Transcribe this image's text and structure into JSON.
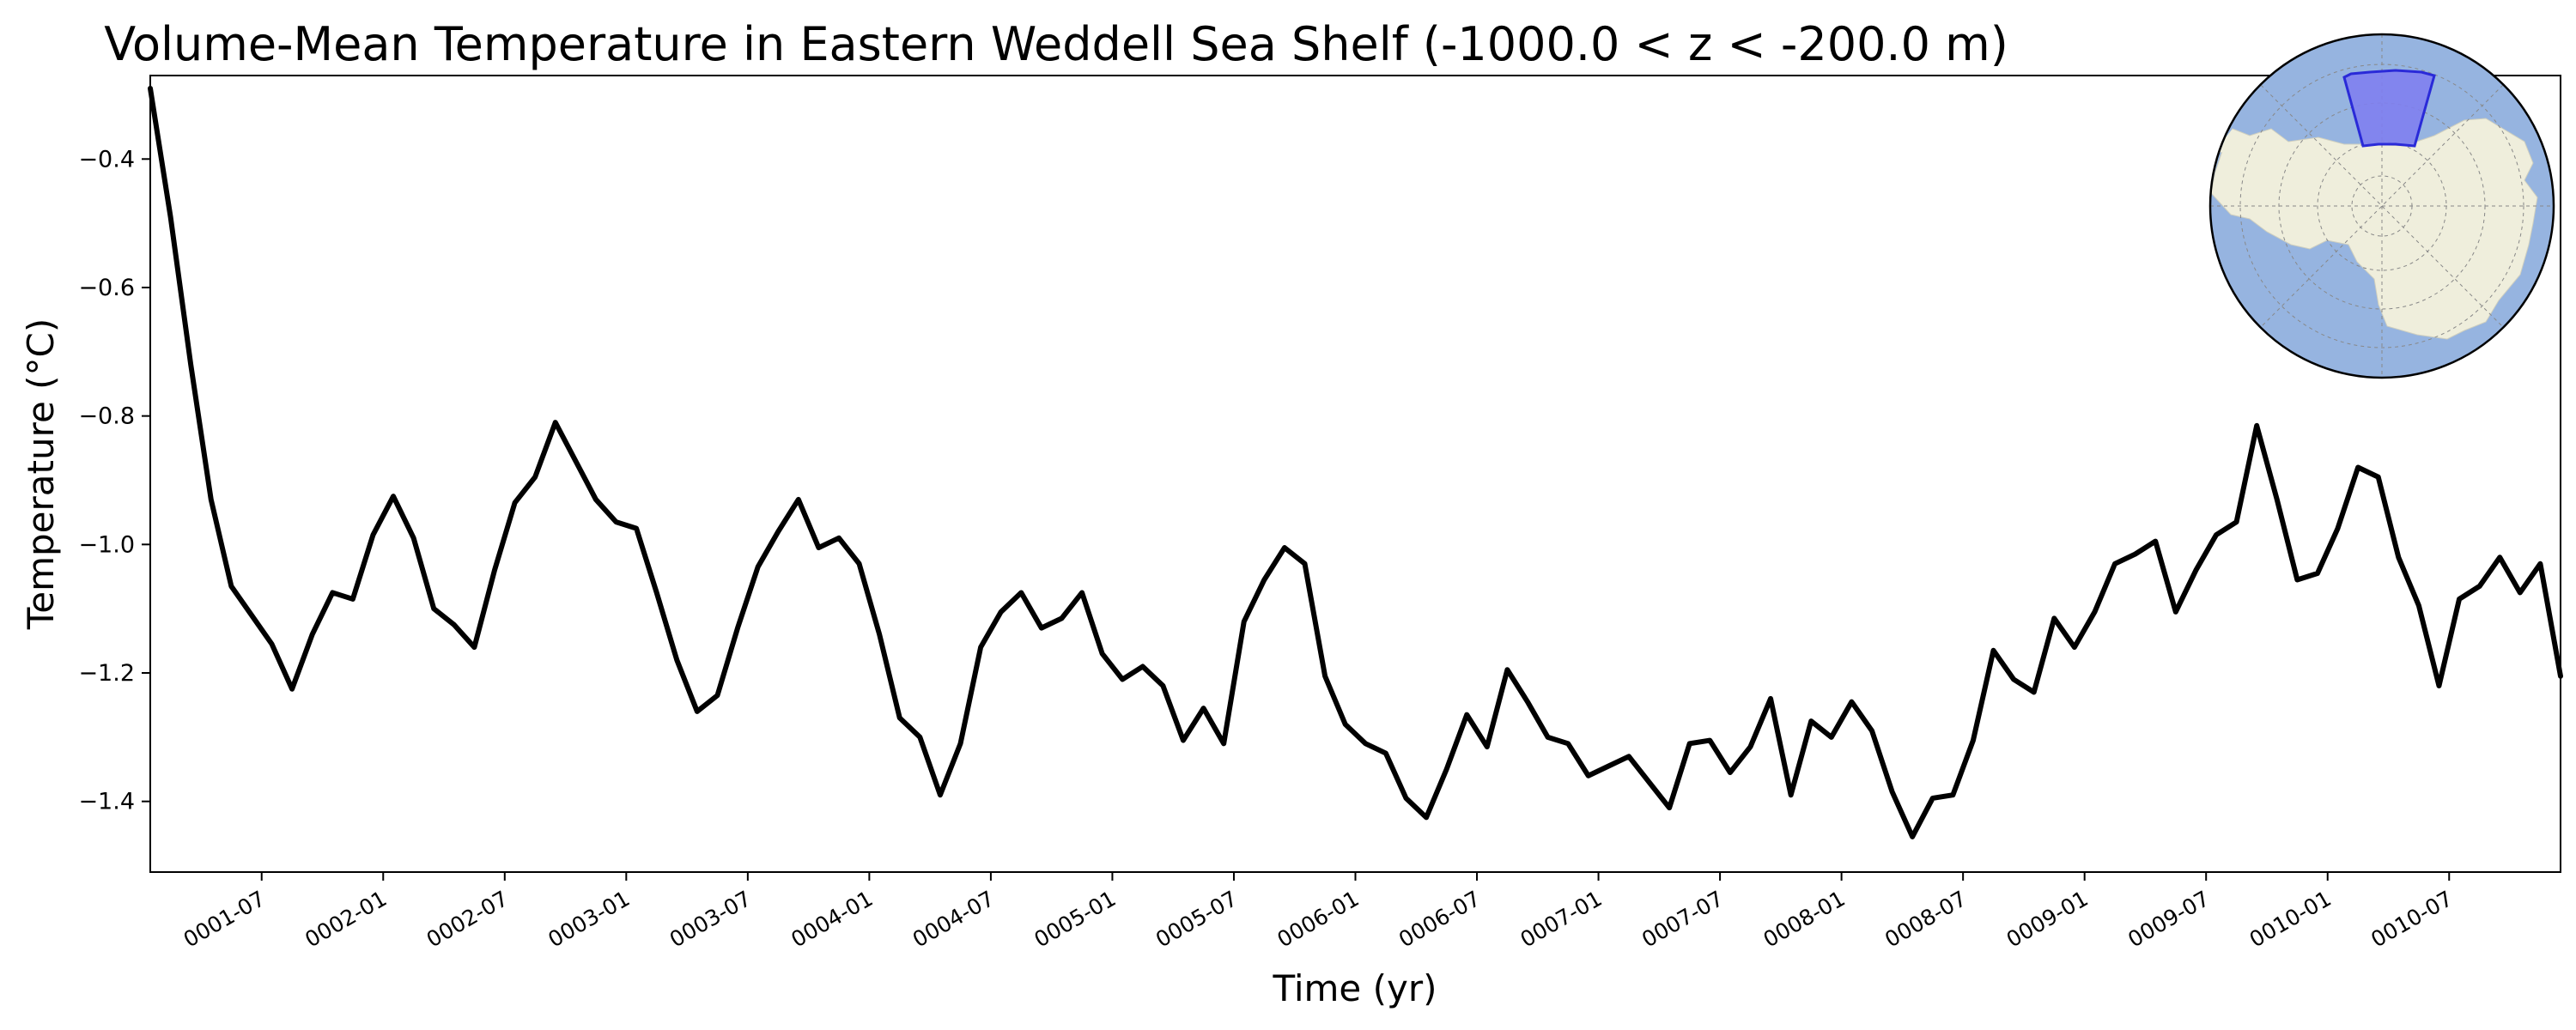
{
  "chart_data": {
    "type": "line",
    "title": "Volume-Mean Temperature in Eastern Weddell Sea Shelf (-1000.0 < z < -200.0 m)",
    "xlabel": "Time (yr)",
    "ylabel": "Temperature (°C)",
    "ylim": [
      -1.51,
      -0.27
    ],
    "yticks": [
      -1.4,
      -1.2,
      -1.0,
      -0.8,
      -0.6,
      -0.4
    ],
    "ytick_labels": [
      "−1.4",
      "−1.2",
      "−1.0",
      "−0.8",
      "−0.6",
      "−0.4"
    ],
    "xlim": [
      "0001-01-16",
      "0010-12-16"
    ],
    "xticks": [
      "0001-07",
      "0002-01",
      "0002-07",
      "0003-01",
      "0003-07",
      "0004-01",
      "0004-07",
      "0005-01",
      "0005-07",
      "0006-01",
      "0006-07",
      "0007-01",
      "0007-07",
      "0008-01",
      "0008-07",
      "0009-01",
      "0009-07",
      "0010-01",
      "0010-07"
    ],
    "grid": false,
    "line_color": "#000000",
    "inset_map": {
      "projection": "south-polar stereographic",
      "region": "Eastern Weddell Sea Shelf",
      "ocean_color": "#96b4e0",
      "land_color": "#efeedc",
      "region_color": "#8080f0"
    },
    "series": [
      {
        "name": "",
        "x": [
          "0001-01",
          "0001-02",
          "0001-03",
          "0001-04",
          "0001-05",
          "0001-06",
          "0001-07",
          "0001-08",
          "0001-09",
          "0001-10",
          "0001-11",
          "0001-12",
          "0002-01",
          "0002-02",
          "0002-03",
          "0002-04",
          "0002-05",
          "0002-06",
          "0002-07",
          "0002-08",
          "0002-09",
          "0002-10",
          "0002-11",
          "0002-12",
          "0003-01",
          "0003-02",
          "0003-03",
          "0003-04",
          "0003-05",
          "0003-06",
          "0003-07",
          "0003-08",
          "0003-09",
          "0003-10",
          "0003-11",
          "0003-12",
          "0004-01",
          "0004-02",
          "0004-03",
          "0004-04",
          "0004-05",
          "0004-06",
          "0004-07",
          "0004-08",
          "0004-09",
          "0004-10",
          "0004-11",
          "0004-12",
          "0005-01",
          "0005-02",
          "0005-03",
          "0005-04",
          "0005-05",
          "0005-06",
          "0005-07",
          "0005-08",
          "0005-09",
          "0005-10",
          "0005-11",
          "0005-12",
          "0006-01",
          "0006-02",
          "0006-03",
          "0006-04",
          "0006-05",
          "0006-06",
          "0006-07",
          "0006-08",
          "0006-09",
          "0006-10",
          "0006-11",
          "0006-12",
          "0007-01",
          "0007-02",
          "0007-03",
          "0007-04",
          "0007-05",
          "0007-06",
          "0007-07",
          "0007-08",
          "0007-09",
          "0007-10",
          "0007-11",
          "0007-12",
          "0008-01",
          "0008-02",
          "0008-03",
          "0008-04",
          "0008-05",
          "0008-06",
          "0008-07",
          "0008-08",
          "0008-09",
          "0008-10",
          "0008-11",
          "0008-12",
          "0009-01",
          "0009-02",
          "0009-03",
          "0009-04",
          "0009-05",
          "0009-06",
          "0009-07",
          "0009-08",
          "0009-09",
          "0009-10",
          "0009-11",
          "0009-12",
          "0010-01",
          "0010-02",
          "0010-03",
          "0010-04",
          "0010-05",
          "0010-06",
          "0010-07",
          "0010-08",
          "0010-09",
          "0010-10",
          "0010-11",
          "0010-12"
        ],
        "values": [
          -0.29,
          -0.49,
          -0.72,
          -0.93,
          -1.065,
          -1.11,
          -1.155,
          -1.225,
          -1.14,
          -1.075,
          -1.085,
          -0.985,
          -0.925,
          -0.99,
          -1.1,
          -1.125,
          -1.16,
          -1.04,
          -0.935,
          -0.895,
          -0.81,
          -0.87,
          -0.93,
          -0.965,
          -0.975,
          -1.075,
          -1.18,
          -1.26,
          -1.235,
          -1.13,
          -1.035,
          -0.98,
          -0.93,
          -1.005,
          -0.99,
          -1.03,
          -1.14,
          -1.27,
          -1.3,
          -1.39,
          -1.31,
          -1.16,
          -1.105,
          -1.075,
          -1.13,
          -1.115,
          -1.075,
          -1.17,
          -1.21,
          -1.19,
          -1.22,
          -1.305,
          -1.255,
          -1.31,
          -1.12,
          -1.055,
          -1.005,
          -1.03,
          -1.205,
          -1.28,
          -1.31,
          -1.325,
          -1.395,
          -1.425,
          -1.35,
          -1.265,
          -1.315,
          -1.195,
          -1.245,
          -1.3,
          -1.31,
          -1.36,
          -1.345,
          -1.33,
          -1.37,
          -1.41,
          -1.31,
          -1.305,
          -1.355,
          -1.315,
          -1.24,
          -1.39,
          -1.275,
          -1.3,
          -1.245,
          -1.29,
          -1.385,
          -1.455,
          -1.395,
          -1.39,
          -1.305,
          -1.165,
          -1.21,
          -1.23,
          -1.115,
          -1.16,
          -1.105,
          -1.03,
          -1.015,
          -0.995,
          -1.105,
          -1.04,
          -0.985,
          -0.965,
          -0.815,
          -0.93,
          -1.055,
          -1.045,
          -0.975,
          -0.88,
          -0.895,
          -1.02,
          -1.095,
          -1.22,
          -1.085,
          -1.065,
          -1.02,
          -1.075,
          -1.03,
          -1.205
        ]
      }
    ]
  }
}
